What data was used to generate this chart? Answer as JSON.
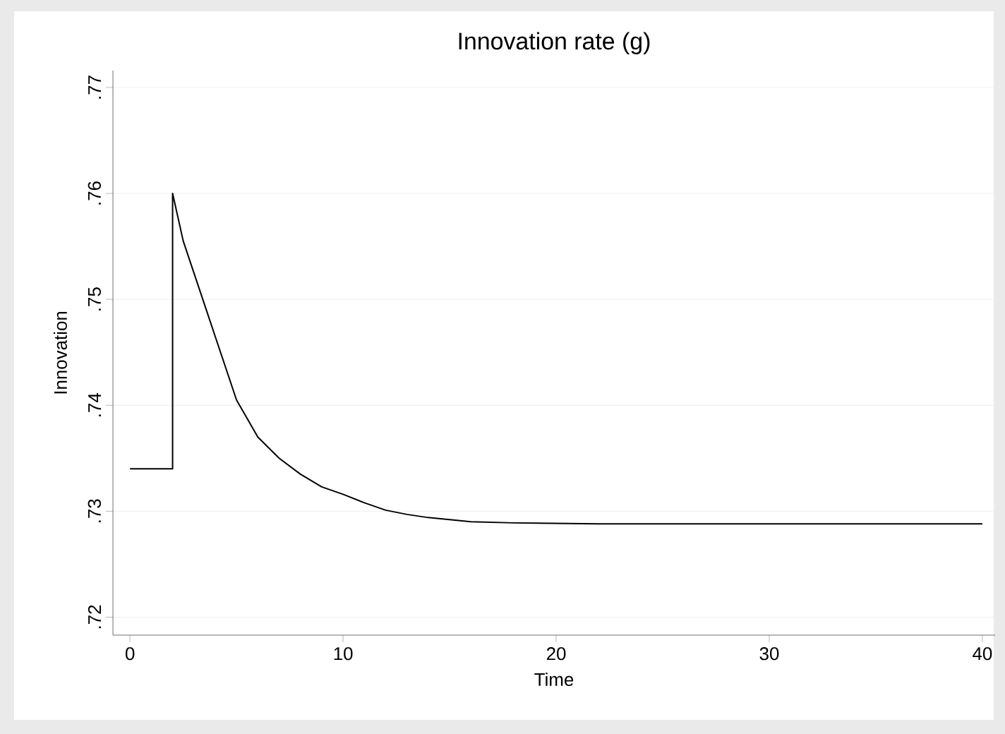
{
  "chart_data": {
    "type": "line",
    "title": "Innovation rate (g)",
    "xlabel": "Time",
    "ylabel": "Innovation",
    "x": [
      0,
      2,
      2,
      2.5,
      3,
      3.5,
      4,
      5,
      6,
      7,
      8,
      9,
      10,
      11,
      12,
      13,
      14,
      15,
      16,
      18,
      22,
      40
    ],
    "values": [
      0.734,
      0.734,
      0.76,
      0.7555,
      0.7525,
      0.7495,
      0.7465,
      0.7405,
      0.737,
      0.735,
      0.7335,
      0.7323,
      0.7316,
      0.7308,
      0.7301,
      0.7297,
      0.7294,
      0.7292,
      0.729,
      0.7289,
      0.7288,
      0.7288
    ],
    "color": "#000000",
    "xlim": [
      -0.8,
      40.6
    ],
    "ylim": [
      0.7183,
      0.7716
    ],
    "xticks": [
      0,
      10,
      20,
      30,
      40
    ],
    "yticks": [
      {
        "value": 0.72,
        "label": ".72"
      },
      {
        "value": 0.73,
        "label": ".73"
      },
      {
        "value": 0.74,
        "label": ".74"
      },
      {
        "value": 0.75,
        "label": ".75"
      },
      {
        "value": 0.76,
        "label": ".76"
      },
      {
        "value": 0.77,
        "label": ".77"
      }
    ],
    "grid": "y",
    "marker": "none",
    "line_style": "solid"
  }
}
